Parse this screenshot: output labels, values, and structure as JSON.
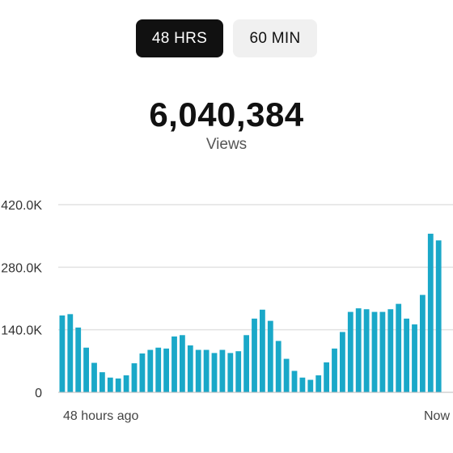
{
  "toggle": {
    "options": [
      "48 HRS",
      "60 MIN"
    ],
    "selected": "48 HRS"
  },
  "summary": {
    "total": "6,040,384",
    "label": "Views"
  },
  "colors": {
    "bar": "#1aa8c8",
    "active_toggle": "#111111",
    "inactive_toggle": "#f0f0f0"
  },
  "chart_data": {
    "type": "bar",
    "title": "",
    "xlabel": "",
    "ylabel": "",
    "ylim": [
      0,
      420000
    ],
    "yticks": [
      0,
      140000,
      280000,
      420000
    ],
    "ytick_labels": [
      "0",
      "140.0K",
      "280.0K",
      "420.0K"
    ],
    "x_start_label": "48 hours ago",
    "x_end_label": "Now",
    "grid": true,
    "values": [
      172000,
      175000,
      145000,
      100000,
      66000,
      45000,
      33000,
      31000,
      38000,
      65000,
      87000,
      95000,
      100000,
      98000,
      125000,
      128000,
      105000,
      95000,
      95000,
      88000,
      95000,
      88000,
      92000,
      128000,
      165000,
      185000,
      160000,
      115000,
      75000,
      48000,
      33000,
      28000,
      38000,
      67000,
      98000,
      135000,
      180000,
      188000,
      186000,
      180000,
      180000,
      186000,
      198000,
      165000,
      152000,
      218000,
      355000,
      340000
    ]
  }
}
